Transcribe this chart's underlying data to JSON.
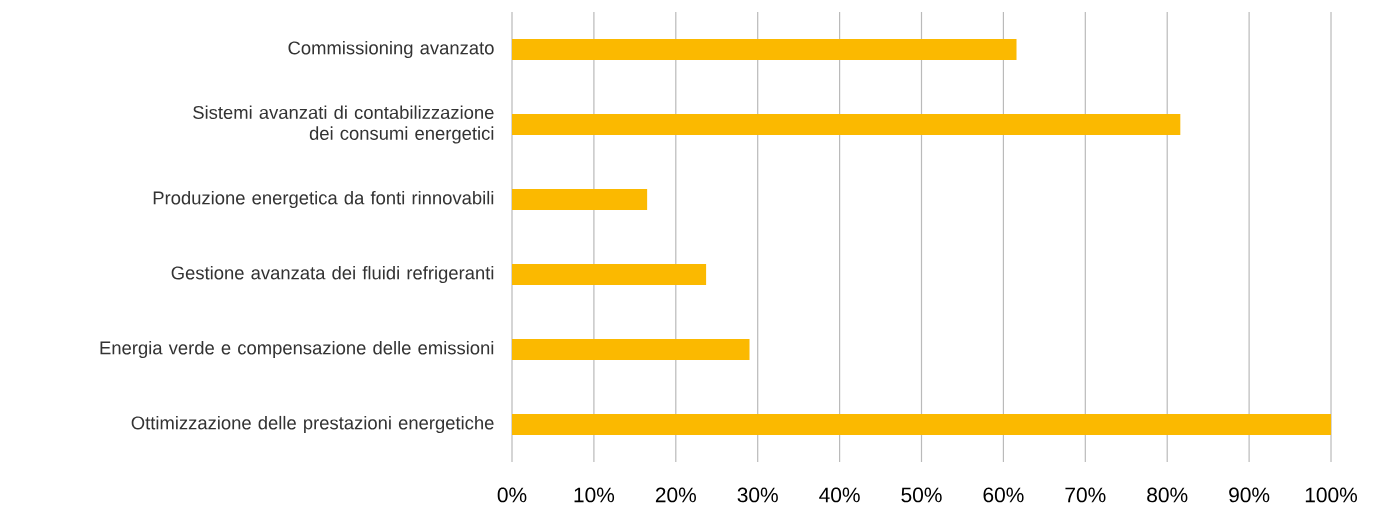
{
  "chart_data": {
    "type": "bar",
    "orientation": "horizontal",
    "categories": [
      "Commissioning avanzato",
      "Sistemi avanzati di contabilizzazione dei consumi energetici",
      "Produzione energetica da fonti rinnovabili",
      "Gestione avanzata dei fluidi refrigeranti",
      "Energia verde e compensazione delle emissioni",
      "Ottimizzazione delle prestazioni energetiche"
    ],
    "values": [
      61.6,
      81.6,
      16.5,
      23.7,
      29.0,
      100
    ],
    "color": "#fbb900",
    "xlim": [
      0,
      100
    ],
    "xticks": [
      {
        "value": 0,
        "label": "0%"
      },
      {
        "value": 10,
        "label": "10%"
      },
      {
        "value": 20,
        "label": "20%"
      },
      {
        "value": 30,
        "label": "30%"
      },
      {
        "value": 40,
        "label": "40%"
      },
      {
        "value": 50,
        "label": "50%"
      },
      {
        "value": 60,
        "label": "60%"
      },
      {
        "value": 70,
        "label": "70%"
      },
      {
        "value": 80,
        "label": "80%"
      },
      {
        "value": 90,
        "label": "90%"
      },
      {
        "value": 100,
        "label": "100%"
      }
    ],
    "grid": "x"
  }
}
